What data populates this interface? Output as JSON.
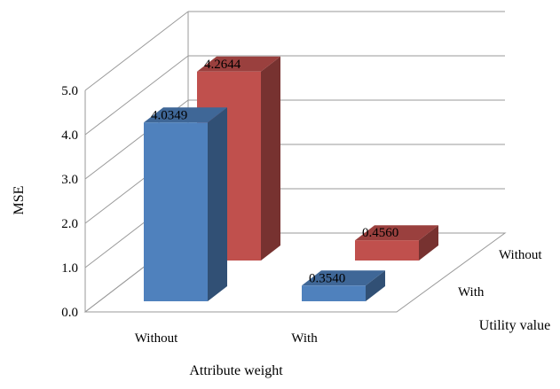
{
  "chart_data": {
    "type": "bar",
    "style": "3d-clustered",
    "categories": [
      "Without",
      "With"
    ],
    "series": [
      {
        "name": "With",
        "values": [
          4.0349,
          0.354
        ],
        "color": "#4f81bd"
      },
      {
        "name": "Without",
        "values": [
          4.2644,
          0.456
        ],
        "color": "#c0504d"
      }
    ],
    "data_labels": [
      [
        "4.0349",
        "0.3540"
      ],
      [
        "4.2644",
        "0.4560"
      ]
    ],
    "ylabel": "MSE",
    "xlabel": "Attribute weight",
    "zlabel": "Utility value",
    "ylim": [
      0,
      5
    ],
    "yticks": [
      "0.0",
      "1.0",
      "2.0",
      "3.0",
      "4.0",
      "5.0"
    ],
    "grid": true
  }
}
